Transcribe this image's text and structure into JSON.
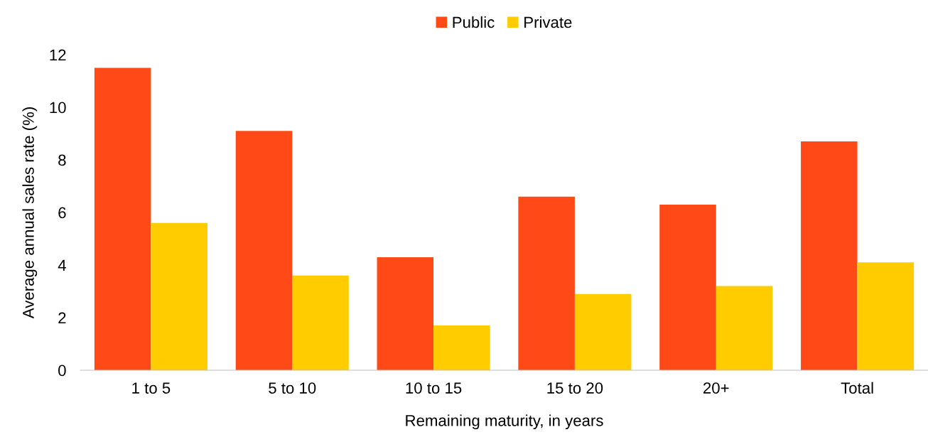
{
  "chart_data": {
    "type": "bar",
    "xlabel": "Remaining maturity, in years",
    "ylabel": "Average annual sales rate (%)",
    "categories": [
      "1 to 5",
      "5 to 10",
      "10 to 15",
      "15 to 20",
      "20+",
      "Total"
    ],
    "series": [
      {
        "name": "Public",
        "color": "#ff4a17",
        "values": [
          11.5,
          9.1,
          4.3,
          6.6,
          6.3,
          8.7
        ]
      },
      {
        "name": "Private",
        "color": "#ffcc00",
        "values": [
          5.6,
          3.6,
          1.7,
          2.9,
          3.2,
          4.1
        ]
      }
    ],
    "ylim": [
      0,
      12
    ],
    "yticks": [
      0,
      2,
      4,
      6,
      8,
      10,
      12
    ],
    "grid": false,
    "legend": "top"
  }
}
